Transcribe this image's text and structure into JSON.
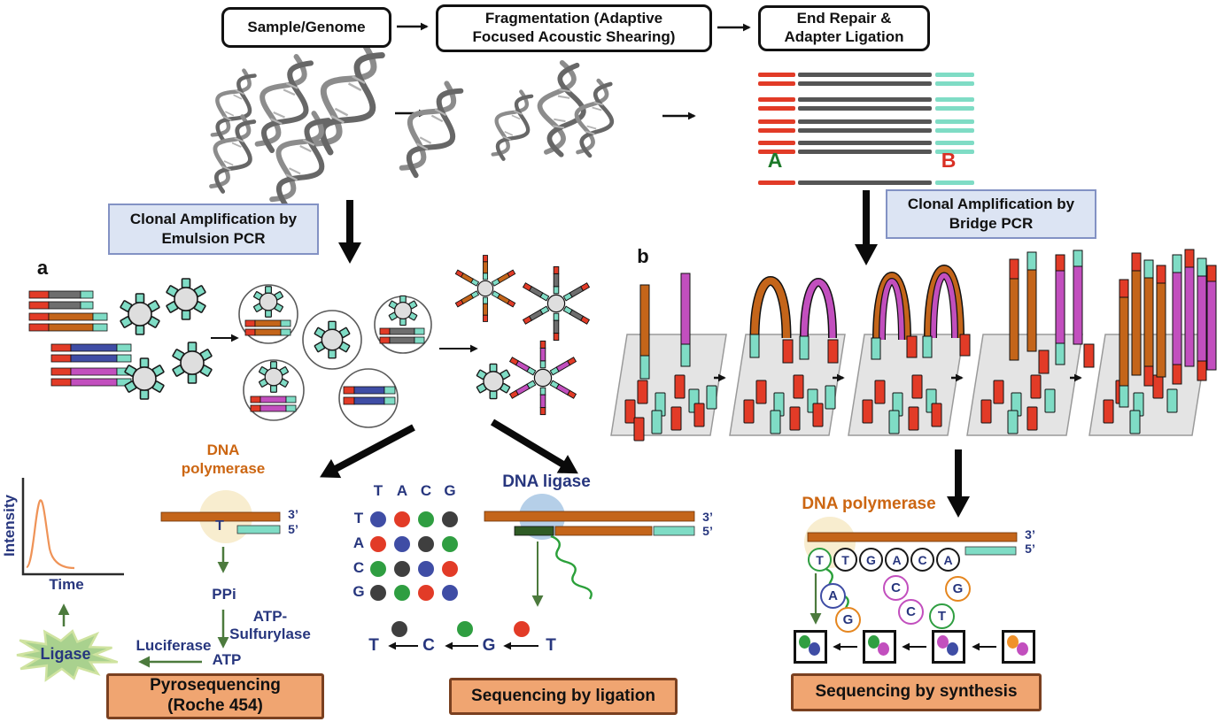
{
  "flow": {
    "step1": "Sample/Genome",
    "step2": "Fragmentation (Adaptive Focused Acoustic Shearing)",
    "step3": "End Repair & Adapter Ligation"
  },
  "adapters": {
    "a": "A",
    "b": "B"
  },
  "branches": {
    "a": "a",
    "b": "b"
  },
  "amplification": {
    "emulsion": "Clonal Amplification by Emulsion PCR",
    "bridge": "Clonal Amplification by Bridge PCR"
  },
  "pyrosequencing": {
    "enzyme": "DNA polymerase",
    "ylabel": "Intensity",
    "xlabel": "Time",
    "base": "T",
    "end3": "3’",
    "end5": "5’",
    "ppi": "PPi",
    "sulfurylase": "ATP-Sulfurylase",
    "atp": "ATP",
    "luciferase": "Luciferase",
    "burst": "Ligase",
    "title": "Pyrosequencing (Roche 454)"
  },
  "ligation": {
    "enzyme": "DNA ligase",
    "end3": "3’",
    "end5": "5’",
    "matrix_cols": [
      "T",
      "A",
      "C",
      "G"
    ],
    "matrix_rows": [
      "T",
      "A",
      "C",
      "G"
    ],
    "matrix_dot_colors": [
      [
        "blue",
        "red",
        "green",
        "dark"
      ],
      [
        "red",
        "blue",
        "dark",
        "green"
      ],
      [
        "green",
        "dark",
        "blue",
        "red"
      ],
      [
        "dark",
        "green",
        "red",
        "blue"
      ]
    ],
    "read_letters": [
      "T",
      "C",
      "G",
      "T"
    ],
    "read_dot_colors": [
      "dark",
      "green",
      "red"
    ],
    "title": "Sequencing by ligation"
  },
  "synthesis": {
    "enzyme": "DNA polymerase",
    "end3": "3’",
    "end5": "5’",
    "template_circles": [
      {
        "letter": "T",
        "ring": "green"
      },
      {
        "letter": "T",
        "ring": "black"
      },
      {
        "letter": "G",
        "ring": "black"
      },
      {
        "letter": "A",
        "ring": "black"
      },
      {
        "letter": "C",
        "ring": "black"
      },
      {
        "letter": "A",
        "ring": "black"
      }
    ],
    "free_nucleotides": [
      {
        "letter": "A",
        "ring": "blue"
      },
      {
        "letter": "G",
        "ring": "orange"
      },
      {
        "letter": "C",
        "ring": "magenta"
      },
      {
        "letter": "C",
        "ring": "magenta"
      },
      {
        "letter": "T",
        "ring": "green"
      },
      {
        "letter": "G",
        "ring": "orange"
      }
    ],
    "result_boxes": [
      {
        "dots": [
          "green",
          "blue"
        ]
      },
      {
        "dots": [
          "green",
          "magenta"
        ]
      },
      {
        "dots": [
          "magenta",
          "blue"
        ]
      },
      {
        "dots": [
          "orange",
          "magenta"
        ]
      }
    ],
    "title": "Sequencing by synthesis"
  },
  "palette": {
    "red": "#e23b27",
    "teal": "#7fdcc5",
    "dark": "#3f3f3f",
    "gray_frag": "#6e6e6e",
    "adapter_mid": "#555555",
    "orange": "#c4651a",
    "magenta": "#c24fbe",
    "blue": "#3f4da5",
    "green": "#2f9e41",
    "dot_orange": "#f0922b",
    "ring_orange": "#e5861f",
    "navy": "#27367e",
    "orange_text": "#cc6612",
    "a_green": "#1d7a2a",
    "b_red": "#d93025",
    "label_box_fill": "#dce4f3",
    "label_box_border": "#8392c4",
    "result_box_fill": "#f0a571",
    "result_box_border": "#7a4020",
    "arrow_green": "#4c7a3d",
    "squiggle_green": "#2ba03a",
    "anchor_green": "#2f5b25",
    "ligase_circle": "#b5cfe8",
    "polymerase_circle": "#f8edcf",
    "burst_fill": "#a9d18e"
  }
}
